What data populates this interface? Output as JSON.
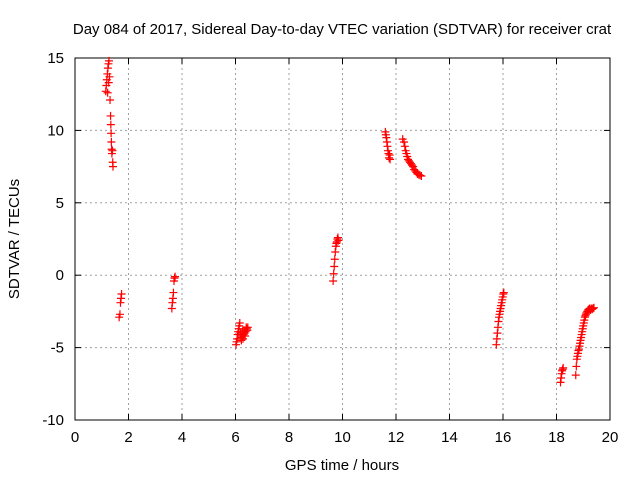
{
  "chart_data": {
    "type": "scatter",
    "title": "Day 084 of 2017, Sidereal Day-to-day VTEC variation (SDTVAR) for receiver crat",
    "xlabel": "GPS time / hours",
    "ylabel": "SDTVAR / TECUs",
    "xlim": [
      0,
      20
    ],
    "ylim": [
      -10,
      15
    ],
    "x_ticks": [
      "0",
      "2",
      "4",
      "6",
      "8",
      "10",
      "12",
      "14",
      "16",
      "18",
      "20"
    ],
    "y_ticks": [
      "15",
      "10",
      "5",
      "0",
      "-5",
      "-10"
    ],
    "grid": true,
    "marker": "+",
    "series": [
      {
        "name": "SDTVAR",
        "color": "#ff0000",
        "points": [
          [
            1.15,
            12.7
          ],
          [
            1.17,
            13.1
          ],
          [
            1.19,
            13.5
          ],
          [
            1.21,
            13.9
          ],
          [
            1.23,
            14.3
          ],
          [
            1.25,
            14.6
          ],
          [
            1.27,
            14.8
          ],
          [
            1.22,
            12.6
          ],
          [
            1.26,
            13.3
          ],
          [
            1.29,
            13.7
          ],
          [
            1.31,
            12.1
          ],
          [
            1.33,
            11.0
          ],
          [
            1.34,
            10.4
          ],
          [
            1.35,
            9.8
          ],
          [
            1.36,
            9.2
          ],
          [
            1.37,
            8.7
          ],
          [
            1.38,
            8.4
          ],
          [
            1.4,
            8.6
          ],
          [
            1.41,
            7.8
          ],
          [
            1.42,
            7.5
          ],
          [
            1.65,
            -2.9
          ],
          [
            1.68,
            -2.7
          ],
          [
            1.7,
            -1.9
          ],
          [
            1.72,
            -1.6
          ],
          [
            1.74,
            -1.3
          ],
          [
            3.62,
            -2.3
          ],
          [
            3.64,
            -1.9
          ],
          [
            3.66,
            -1.6
          ],
          [
            3.68,
            -1.2
          ],
          [
            3.7,
            -0.4
          ],
          [
            3.72,
            -0.2
          ],
          [
            3.74,
            -0.1
          ],
          [
            6.02,
            -4.8
          ],
          [
            6.04,
            -4.6
          ],
          [
            6.06,
            -4.4
          ],
          [
            6.08,
            -4.1
          ],
          [
            6.1,
            -3.9
          ],
          [
            6.12,
            -3.7
          ],
          [
            6.14,
            -3.5
          ],
          [
            6.16,
            -3.3
          ],
          [
            6.18,
            -4.0
          ],
          [
            6.2,
            -4.3
          ],
          [
            6.22,
            -4.5
          ],
          [
            6.24,
            -4.2
          ],
          [
            6.26,
            -3.9
          ],
          [
            6.28,
            -4.4
          ],
          [
            6.3,
            -4.1
          ],
          [
            6.32,
            -3.8
          ],
          [
            6.34,
            -4.0
          ],
          [
            6.36,
            -4.2
          ],
          [
            6.38,
            -3.9
          ],
          [
            6.4,
            -3.6
          ],
          [
            6.42,
            -3.7
          ],
          [
            6.44,
            -3.8
          ],
          [
            6.46,
            -3.6
          ],
          [
            9.65,
            -0.4
          ],
          [
            9.67,
            0.1
          ],
          [
            9.69,
            0.6
          ],
          [
            9.71,
            1.1
          ],
          [
            9.73,
            1.6
          ],
          [
            9.75,
            2.0
          ],
          [
            9.77,
            2.2
          ],
          [
            9.79,
            2.3
          ],
          [
            9.81,
            2.5
          ],
          [
            9.83,
            2.6
          ],
          [
            9.85,
            2.4
          ],
          [
            11.6,
            9.9
          ],
          [
            11.62,
            9.7
          ],
          [
            11.64,
            9.5
          ],
          [
            11.66,
            9.2
          ],
          [
            11.68,
            8.9
          ],
          [
            11.7,
            8.6
          ],
          [
            11.72,
            8.4
          ],
          [
            11.74,
            8.1
          ],
          [
            11.76,
            8.3
          ],
          [
            11.78,
            8.0
          ],
          [
            12.25,
            9.4
          ],
          [
            12.3,
            9.2
          ],
          [
            12.33,
            8.9
          ],
          [
            12.36,
            8.6
          ],
          [
            12.39,
            8.4
          ],
          [
            12.42,
            8.2
          ],
          [
            12.45,
            8.0
          ],
          [
            12.48,
            7.9
          ],
          [
            12.52,
            7.8
          ],
          [
            12.56,
            7.7
          ],
          [
            12.6,
            7.6
          ],
          [
            12.64,
            7.5
          ],
          [
            12.68,
            7.3
          ],
          [
            12.72,
            7.2
          ],
          [
            12.76,
            7.1
          ],
          [
            12.8,
            7.0
          ],
          [
            12.85,
            6.95
          ],
          [
            12.9,
            6.9
          ],
          [
            12.95,
            6.85
          ],
          [
            15.75,
            -4.8
          ],
          [
            15.77,
            -4.4
          ],
          [
            15.79,
            -4.0
          ],
          [
            15.81,
            -3.6
          ],
          [
            15.83,
            -3.2
          ],
          [
            15.85,
            -2.9
          ],
          [
            15.87,
            -2.7
          ],
          [
            15.89,
            -2.5
          ],
          [
            15.91,
            -2.3
          ],
          [
            15.93,
            -2.1
          ],
          [
            15.95,
            -1.9
          ],
          [
            15.97,
            -1.7
          ],
          [
            15.99,
            -1.5
          ],
          [
            16.01,
            -1.3
          ],
          [
            16.03,
            -1.2
          ],
          [
            18.15,
            -7.4
          ],
          [
            18.17,
            -7.1
          ],
          [
            18.19,
            -6.8
          ],
          [
            18.21,
            -6.6
          ],
          [
            18.23,
            -6.5
          ],
          [
            18.25,
            -6.4
          ],
          [
            18.72,
            -6.9
          ],
          [
            18.74,
            -6.3
          ],
          [
            18.76,
            -5.8
          ],
          [
            18.78,
            -5.6
          ],
          [
            18.8,
            -5.4
          ],
          [
            18.82,
            -5.2
          ],
          [
            18.84,
            -5.1
          ],
          [
            18.86,
            -4.9
          ],
          [
            18.88,
            -4.7
          ],
          [
            18.9,
            -4.5
          ],
          [
            18.92,
            -4.3
          ],
          [
            18.94,
            -4.1
          ],
          [
            18.96,
            -3.9
          ],
          [
            18.98,
            -3.7
          ],
          [
            19.0,
            -3.5
          ],
          [
            19.02,
            -3.3
          ],
          [
            19.04,
            -3.1
          ],
          [
            19.06,
            -2.9
          ],
          [
            19.08,
            -2.8
          ],
          [
            19.1,
            -2.7
          ],
          [
            19.12,
            -2.6
          ],
          [
            19.15,
            -2.5
          ],
          [
            19.18,
            -2.4
          ],
          [
            19.21,
            -2.35
          ],
          [
            19.24,
            -2.3
          ],
          [
            19.27,
            -2.4
          ],
          [
            19.3,
            -2.3
          ],
          [
            19.33,
            -2.35
          ],
          [
            19.36,
            -2.3
          ],
          [
            19.4,
            -2.25
          ]
        ]
      }
    ]
  }
}
